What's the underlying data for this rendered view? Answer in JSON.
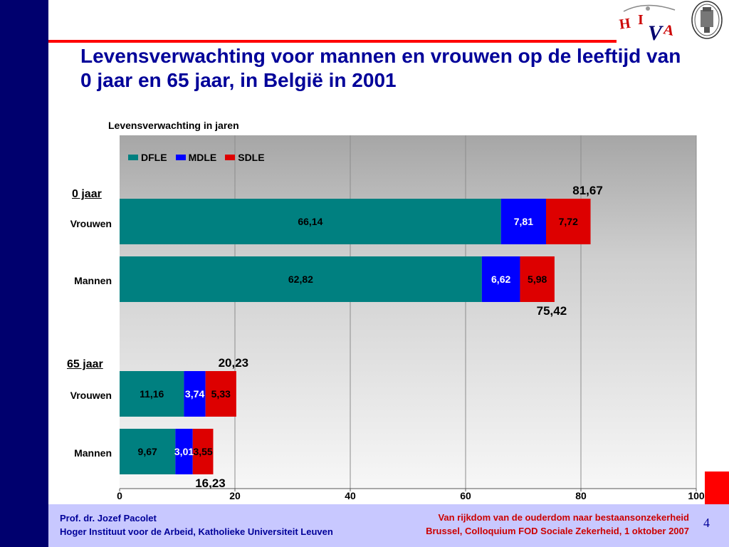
{
  "slide": {
    "title": "Levensverwachting voor mannen en vrouwen op de leeftijd van 0 jaar en 65 jaar, in België in 2001",
    "page_number": "4"
  },
  "footer": {
    "author": "Prof. dr. Jozef Pacolet",
    "institute": "Hoger Instituut voor de Arbeid, Katholieke Universiteit Leuven",
    "event_title": "Van rijkdom van de ouderdom naar bestaansonzekerheid",
    "event_details": "Brussel, Colloquium FOD Sociale Zekerheid, 1 oktober 2007"
  },
  "logos": {
    "hiva_letters": [
      "H",
      "I",
      "V",
      "A"
    ]
  },
  "colors": {
    "brand_navy": "#00006e",
    "accent_red": "#ff0000",
    "footer_bg": "#c8c8ff"
  },
  "chart_data": {
    "type": "bar",
    "orientation": "horizontal",
    "stacked": true,
    "title": "Levensverwachting in jaren",
    "xlim": [
      0,
      100
    ],
    "x_ticks": [
      0,
      20,
      40,
      60,
      80,
      100
    ],
    "grid": true,
    "legend_position": "top-left",
    "groups": [
      {
        "label": "0 jaar",
        "categories": [
          "Vrouwen",
          "Mannen"
        ]
      },
      {
        "label": "65 jaar",
        "categories": [
          "Vrouwen",
          "Mannen"
        ]
      }
    ],
    "categories": [
      "Vrouwen",
      "Mannen",
      "Vrouwen",
      "Mannen"
    ],
    "series": [
      {
        "name": "DFLE",
        "color": "#008080",
        "values": [
          66.14,
          62.82,
          11.16,
          9.67
        ],
        "labels": [
          "66,14",
          "62,82",
          "11,16",
          "9,67"
        ],
        "label_color": "#000000"
      },
      {
        "name": "MDLE",
        "color": "#0000ff",
        "values": [
          7.81,
          6.62,
          3.74,
          3.01
        ],
        "labels": [
          "7,81",
          "6,62",
          "3,74",
          "3,01"
        ],
        "label_color": "#ffffff"
      },
      {
        "name": "SDLE",
        "color": "#dd0000",
        "values": [
          7.72,
          5.98,
          5.33,
          3.55
        ],
        "labels": [
          "7,72",
          "5,98",
          "5,33",
          "3,55"
        ],
        "label_color": "#000000"
      }
    ],
    "totals": [
      81.67,
      75.42,
      20.23,
      16.23
    ],
    "total_labels": [
      "81,67",
      "75,42",
      "20,23",
      "16,23"
    ]
  }
}
